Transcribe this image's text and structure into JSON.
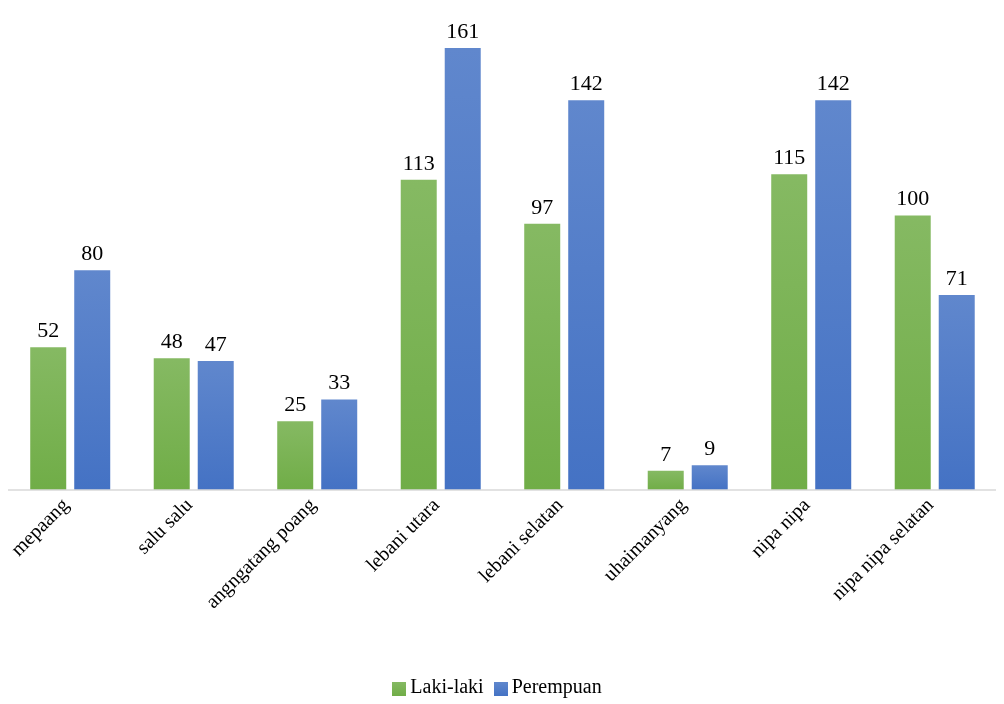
{
  "chart_data": {
    "type": "bar",
    "categories": [
      "mepaang",
      "salu salu",
      "angngatang poang",
      "lebani utara",
      "lebani selatan",
      "uhaimanyang",
      "nipa nipa",
      "nipa nipa selatan"
    ],
    "series": [
      {
        "name": "Laki-laki",
        "color": "#70ad47",
        "values": [
          52,
          48,
          25,
          113,
          97,
          7,
          115,
          100
        ]
      },
      {
        "name": "Perempuan",
        "color": "#4472c4",
        "values": [
          80,
          47,
          33,
          161,
          142,
          9,
          142,
          71
        ]
      }
    ],
    "data_labels": true,
    "legend": "bottom",
    "grid": false
  }
}
